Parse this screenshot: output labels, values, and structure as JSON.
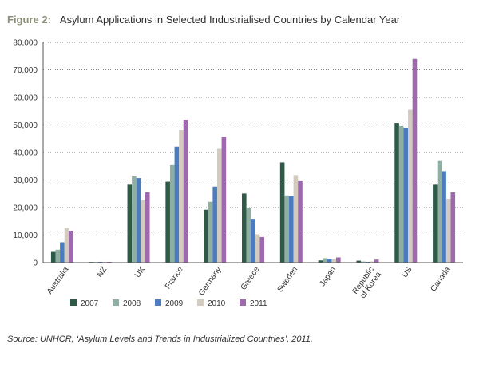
{
  "figure": {
    "label": "Figure 2:",
    "title": "Asylum Applications in Selected Industrialised Countries by Calendar Year",
    "source": "Source: UNHCR, ‘Asylum Levels and Trends in Industrialized Countries’, 2011."
  },
  "chart_data": {
    "type": "bar",
    "title": "Asylum Applications in Selected Industrialised Countries by Calendar Year",
    "xlabel": "",
    "ylabel": "",
    "ylim": [
      0,
      80000
    ],
    "yticks": [
      0,
      10000,
      20000,
      30000,
      40000,
      50000,
      60000,
      70000,
      80000
    ],
    "ytick_labels": [
      "0",
      "10,000",
      "20,000",
      "30,000",
      "40,000",
      "50,000",
      "60,000",
      "70,000",
      "80,000"
    ],
    "grid": "horizontal dotted",
    "legend_position": "bottom",
    "categories": [
      "Australia",
      "NZ",
      "UK",
      "France",
      "Germany",
      "Greece",
      "Sweden",
      "Japan",
      "Republic of Korea",
      "US",
      "Canada"
    ],
    "series": [
      {
        "name": "2007",
        "color": "#2e5a48",
        "values": [
          3900,
          250,
          28300,
          29400,
          19200,
          25100,
          36400,
          800,
          700,
          50700,
          28300
        ]
      },
      {
        "name": "2008",
        "color": "#8fafa2",
        "values": [
          4700,
          250,
          31300,
          35400,
          22100,
          19900,
          24400,
          1600,
          400,
          49600,
          36900
        ]
      },
      {
        "name": "2009",
        "color": "#4c7cc0",
        "values": [
          7400,
          300,
          30700,
          42100,
          27600,
          15900,
          24200,
          1400,
          300,
          49000,
          33200
        ]
      },
      {
        "name": "2010",
        "color": "#d3cbbf",
        "values": [
          12600,
          300,
          22600,
          48100,
          41300,
          10300,
          31800,
          1200,
          400,
          55500,
          23200
        ]
      },
      {
        "name": "2011",
        "color": "#9e69ad",
        "values": [
          11500,
          300,
          25500,
          51900,
          45700,
          9300,
          29600,
          1900,
          1100,
          74000,
          25500
        ]
      }
    ]
  }
}
